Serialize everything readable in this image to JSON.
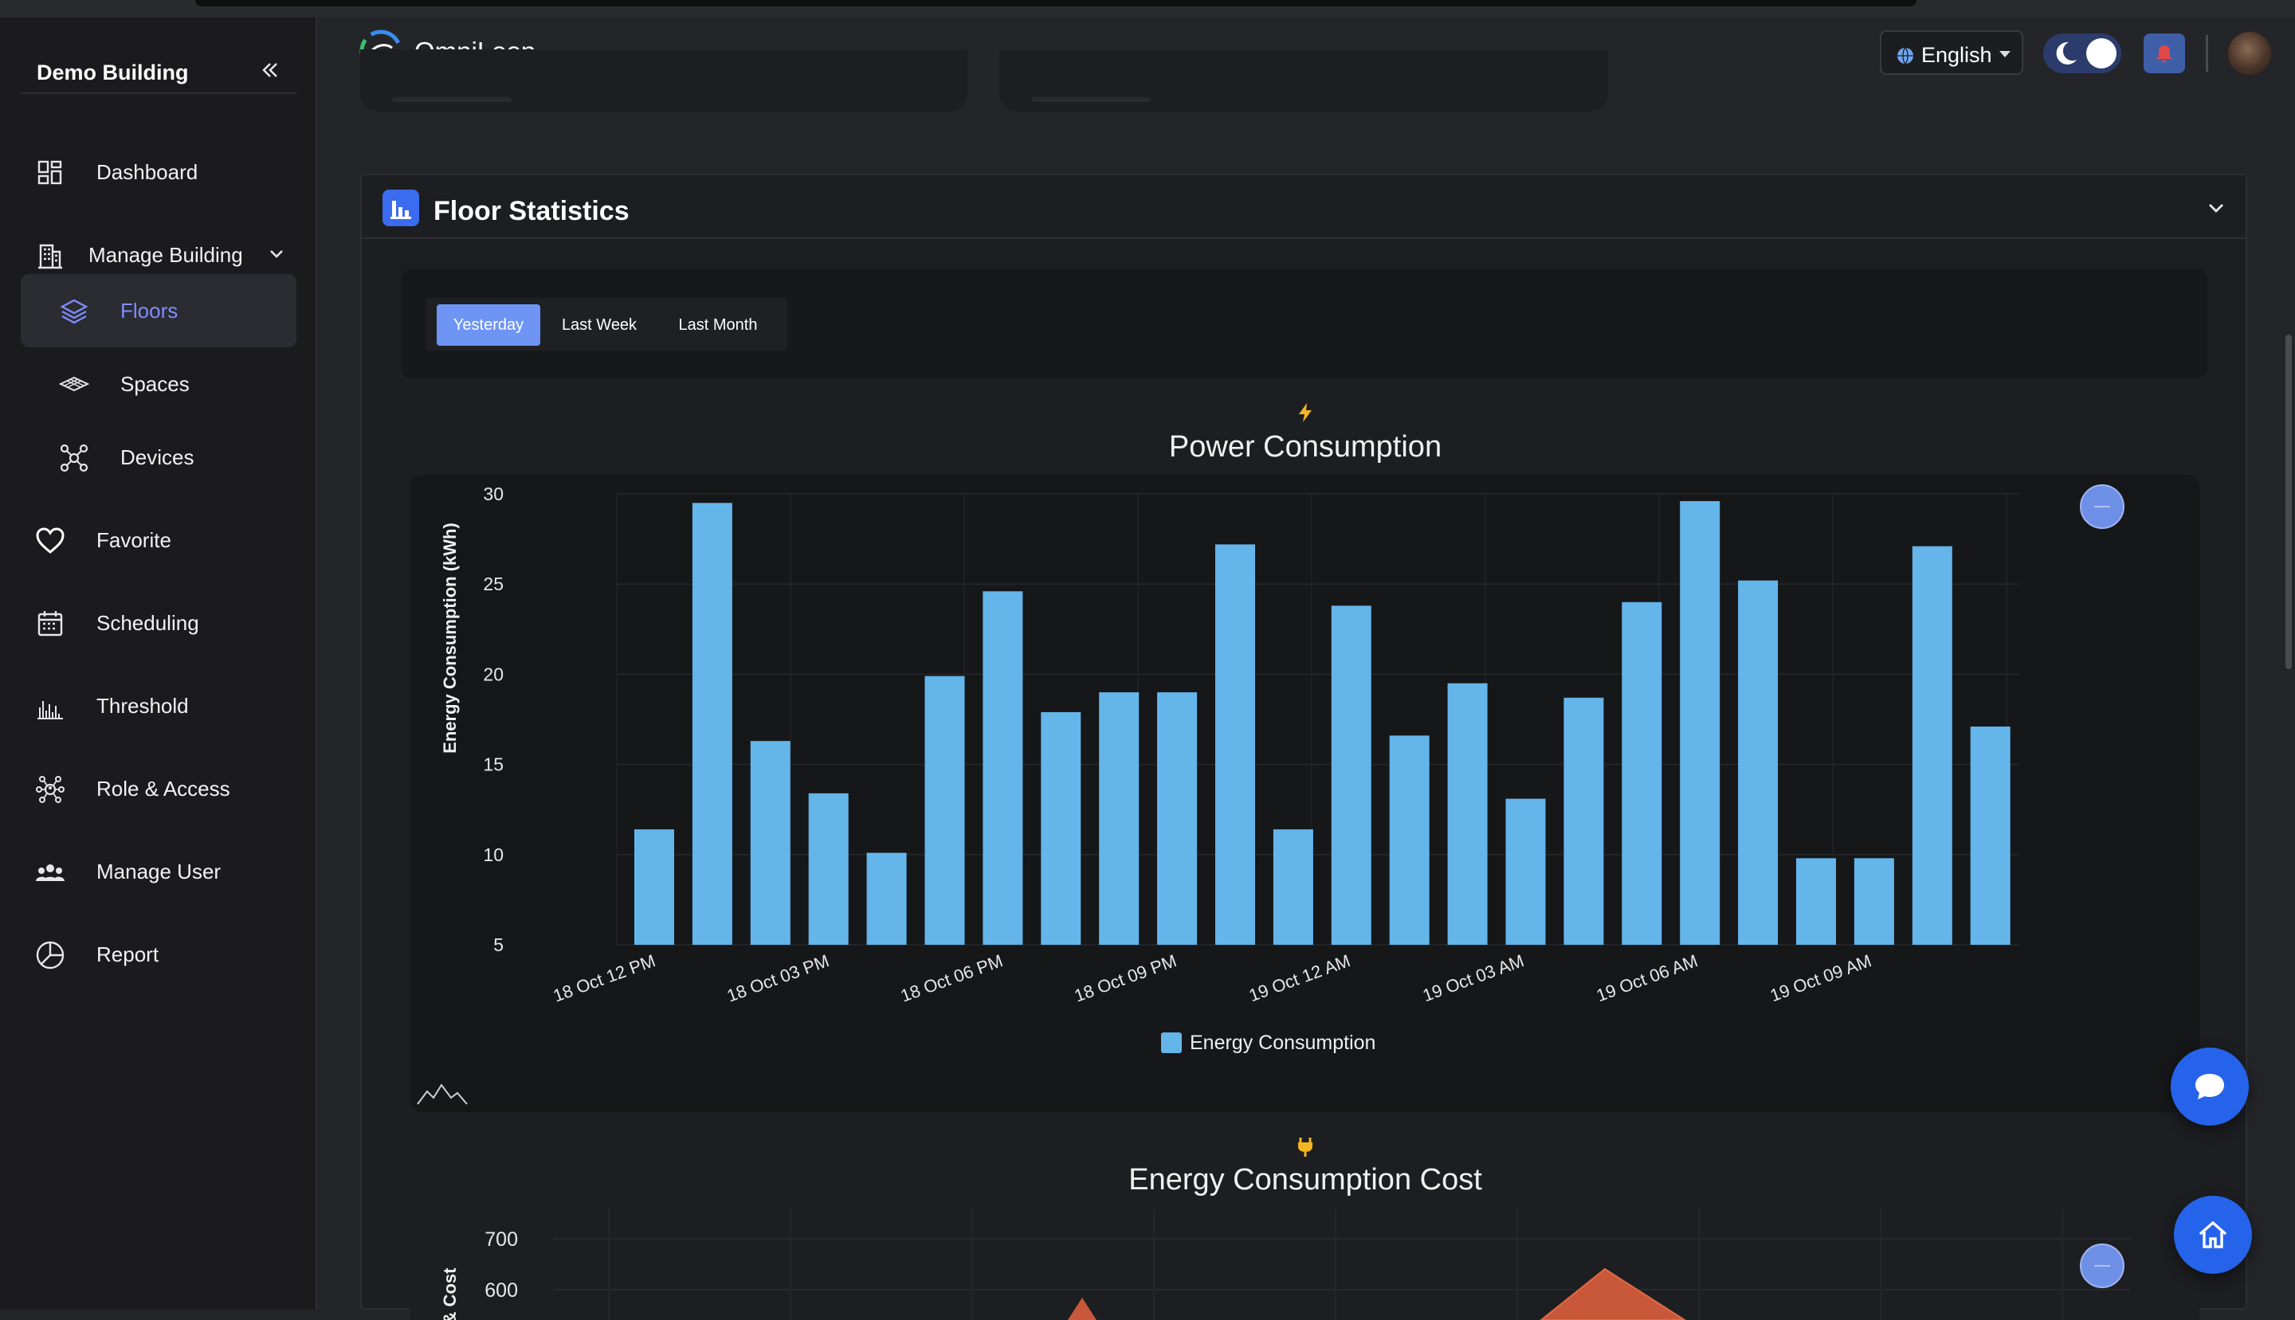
{
  "sidebar": {
    "title": "Demo Building",
    "items": [
      {
        "label": "Dashboard"
      },
      {
        "label": "Manage Building"
      },
      {
        "label": "Floors"
      },
      {
        "label": "Spaces"
      },
      {
        "label": "Devices"
      },
      {
        "label": "Favorite"
      },
      {
        "label": "Scheduling"
      },
      {
        "label": "Threshold"
      },
      {
        "label": "Role & Access"
      },
      {
        "label": "Manage User"
      },
      {
        "label": "Report"
      }
    ]
  },
  "header": {
    "brand": "OmniLoop",
    "language": "English"
  },
  "panel": {
    "title": "Floor Statistics",
    "tabs": [
      {
        "label": "Yesterday"
      },
      {
        "label": "Last Week"
      },
      {
        "label": "Last Month"
      }
    ]
  },
  "colors": {
    "accent": "#6e95f4",
    "bar": "#64b5ea",
    "cost_line": "#c9583a",
    "fab": "#2563eb"
  },
  "chart_data": [
    {
      "type": "bar",
      "title": "Power Consumption",
      "ylabel": "Energy Consumption (kWh)",
      "ylim": [
        5,
        30
      ],
      "yticks": [
        5,
        10,
        15,
        20,
        25,
        30
      ],
      "x_tick_labels": [
        "18 Oct 12 PM",
        "18 Oct 03 PM",
        "18 Oct 06 PM",
        "18 Oct 09 PM",
        "19 Oct 12 AM",
        "19 Oct 03 AM",
        "19 Oct 06 AM",
        "19 Oct 09 AM"
      ],
      "legend": "bottom-center",
      "grid": true,
      "series": [
        {
          "name": "Energy Consumption",
          "values": [
            11.4,
            29.5,
            16.3,
            13.4,
            10.1,
            19.9,
            24.6,
            17.9,
            19.0,
            19.0,
            27.2,
            11.4,
            23.8,
            16.6,
            19.5,
            13.1,
            18.7,
            24.0,
            29.6,
            25.2,
            9.8,
            9.8,
            27.1,
            17.1
          ]
        }
      ]
    },
    {
      "type": "area",
      "title": "Energy Consumption Cost",
      "ylabel": "& Cost",
      "yticks": [
        600,
        700
      ]
    }
  ]
}
